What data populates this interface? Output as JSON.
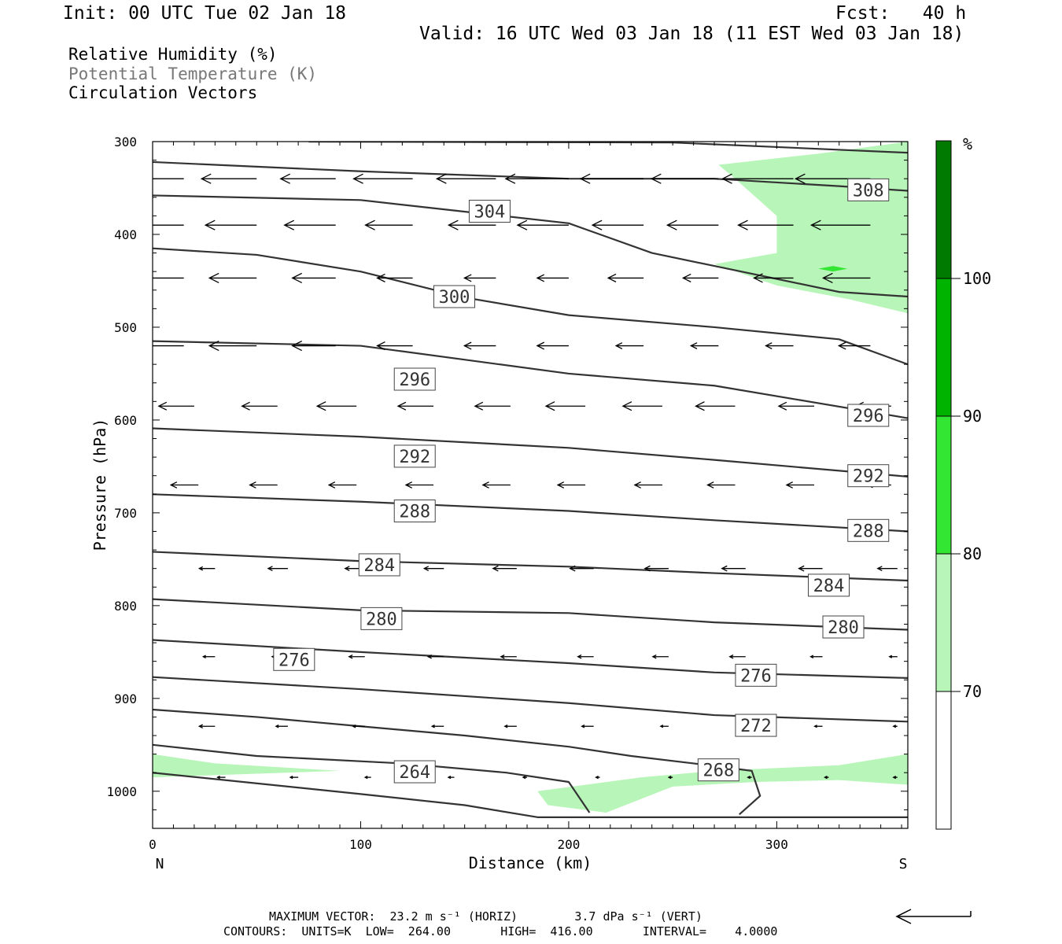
{
  "header": {
    "init": "Init: 00 UTC Tue 02 Jan 18",
    "fcst": "Fcst:   40 h",
    "valid": "Valid: 16 UTC Wed 03 Jan 18 (11 EST Wed 03 Jan 18)"
  },
  "legend_lines": {
    "rh": "Relative Humidity (%)",
    "theta": "Potential Temperature (K)",
    "vectors": "Circulation Vectors"
  },
  "footer": {
    "max_vector": "MAXIMUM VECTOR:  23.2 m s⁻¹ (HORIZ)        3.7 dPa s⁻¹ (VERT)",
    "contours": "CONTOURS:  UNITS=K  LOW=  264.00       HIGH=  416.00       INTERVAL=    4.0000"
  },
  "colors": {
    "rh_70": "#b8f5b8",
    "rh_80": "#33e633",
    "rh_90": "#00b300",
    "rh_100": "#007a00",
    "contour": "#333333"
  },
  "chart_data": {
    "type": "cross-section",
    "xlabel": "Distance (km)",
    "ylabel": "Pressure (hPa)",
    "xlim": [
      0,
      363
    ],
    "ylim": [
      300,
      1040
    ],
    "y_scale": "linear, pressure increasing downward",
    "x_ticks": [
      0,
      100,
      200,
      300
    ],
    "y_ticks": [
      300,
      400,
      500,
      600,
      700,
      800,
      900,
      1000
    ],
    "x_end_labels": {
      "left": "N",
      "right": "S"
    },
    "colorbar": {
      "unit": "%",
      "levels": [
        70,
        80,
        90,
        100
      ],
      "colors": [
        "#ffffff",
        "#b8f5b8",
        "#33e633",
        "#00b300",
        "#007a00"
      ]
    },
    "rh_shaded": [
      {
        "level": 70,
        "points": [
          [
            272,
            325
          ],
          [
            320,
            313
          ],
          [
            363,
            300
          ],
          [
            363,
            485
          ],
          [
            335,
            470
          ],
          [
            300,
            455
          ],
          [
            270,
            432
          ],
          [
            300,
            420
          ],
          [
            300,
            380
          ],
          [
            280,
            340
          ]
        ]
      },
      {
        "level": 70,
        "points": [
          [
            0,
            960
          ],
          [
            30,
            970
          ],
          [
            90,
            978
          ],
          [
            0,
            985
          ]
        ]
      },
      {
        "level": 70,
        "points": [
          [
            185,
            1000
          ],
          [
            235,
            985
          ],
          [
            270,
            978
          ],
          [
            330,
            972
          ],
          [
            363,
            960
          ],
          [
            363,
            993
          ],
          [
            330,
            988
          ],
          [
            290,
            990
          ],
          [
            250,
            995
          ],
          [
            218,
            1023
          ],
          [
            190,
            1015
          ]
        ]
      },
      {
        "level": 80,
        "points": [
          [
            320,
            437
          ],
          [
            327,
            434
          ],
          [
            334,
            437
          ],
          [
            327,
            440
          ]
        ]
      }
    ],
    "theta_contours": [
      {
        "value": 264,
        "points": [
          [
            0,
            950
          ],
          [
            50,
            962
          ],
          [
            120,
            970
          ],
          [
            170,
            980
          ],
          [
            200,
            990
          ],
          [
            210,
            1023
          ]
        ]
      },
      {
        "value": 268,
        "points": [
          [
            0,
            980
          ],
          [
            100,
            1003
          ],
          [
            150,
            1015
          ],
          [
            185,
            1028
          ],
          [
            363,
            1028
          ]
        ]
      },
      {
        "value": 268,
        "points": [
          [
            282,
            1025
          ],
          [
            292,
            1005
          ],
          [
            288,
            978
          ],
          [
            260,
            970
          ],
          [
            230,
            962
          ],
          [
            200,
            952
          ],
          [
            150,
            940
          ],
          [
            100,
            930
          ],
          [
            50,
            920
          ],
          [
            0,
            912
          ]
        ]
      },
      {
        "value": 272,
        "points": [
          [
            0,
            877
          ],
          [
            100,
            890
          ],
          [
            200,
            905
          ],
          [
            270,
            918
          ],
          [
            363,
            925
          ]
        ]
      },
      {
        "value": 276,
        "points": [
          [
            0,
            837
          ],
          [
            100,
            850
          ],
          [
            200,
            862
          ],
          [
            270,
            872
          ],
          [
            363,
            878
          ]
        ]
      },
      {
        "value": 280,
        "points": [
          [
            0,
            793
          ],
          [
            100,
            805
          ],
          [
            200,
            808
          ],
          [
            270,
            818
          ],
          [
            363,
            826
          ]
        ]
      },
      {
        "value": 284,
        "points": [
          [
            0,
            742
          ],
          [
            100,
            752
          ],
          [
            200,
            758
          ],
          [
            270,
            765
          ],
          [
            363,
            773
          ]
        ]
      },
      {
        "value": 288,
        "points": [
          [
            0,
            680
          ],
          [
            100,
            688
          ],
          [
            200,
            698
          ],
          [
            270,
            708
          ],
          [
            363,
            720
          ]
        ]
      },
      {
        "value": 292,
        "points": [
          [
            0,
            609
          ],
          [
            100,
            618
          ],
          [
            200,
            630
          ],
          [
            270,
            643
          ],
          [
            363,
            661
          ]
        ]
      },
      {
        "value": 296,
        "points": [
          [
            0,
            515
          ],
          [
            100,
            520
          ],
          [
            200,
            550
          ],
          [
            270,
            563
          ],
          [
            363,
            598
          ]
        ]
      },
      {
        "value": 300,
        "points": [
          [
            0,
            415
          ],
          [
            50,
            422
          ],
          [
            100,
            440
          ],
          [
            150,
            468
          ],
          [
            200,
            487
          ],
          [
            270,
            500
          ],
          [
            330,
            513
          ],
          [
            363,
            540
          ]
        ]
      },
      {
        "value": 304,
        "points": [
          [
            0,
            358
          ],
          [
            100,
            363
          ],
          [
            160,
            378
          ],
          [
            200,
            388
          ],
          [
            240,
            420
          ],
          [
            270,
            434
          ],
          [
            330,
            462
          ],
          [
            363,
            467
          ]
        ]
      },
      {
        "value": 308,
        "points": [
          [
            0,
            322
          ],
          [
            100,
            332
          ],
          [
            200,
            340
          ],
          [
            270,
            340
          ],
          [
            330,
            348
          ],
          [
            363,
            353
          ]
        ]
      },
      {
        "value": 312,
        "points": [
          [
            75,
            300
          ],
          [
            250,
            301
          ],
          [
            363,
            312
          ]
        ]
      }
    ],
    "contour_labels": [
      {
        "text": "264",
        "x": 126,
        "y": 979
      },
      {
        "text": "268",
        "x": 272,
        "y": 977
      },
      {
        "text": "272",
        "x": 290,
        "y": 929
      },
      {
        "text": "276",
        "x": 290,
        "y": 875
      },
      {
        "text": "276",
        "x": 68,
        "y": 858
      },
      {
        "text": "280",
        "x": 110,
        "y": 814
      },
      {
        "text": "280",
        "x": 332,
        "y": 823
      },
      {
        "text": "284",
        "x": 109,
        "y": 756
      },
      {
        "text": "284",
        "x": 325,
        "y": 778
      },
      {
        "text": "288",
        "x": 126,
        "y": 698
      },
      {
        "text": "288",
        "x": 344,
        "y": 719
      },
      {
        "text": "292",
        "x": 126,
        "y": 639
      },
      {
        "text": "292",
        "x": 344,
        "y": 660
      },
      {
        "text": "296",
        "x": 126,
        "y": 556
      },
      {
        "text": "296",
        "x": 344,
        "y": 595
      },
      {
        "text": "300",
        "x": 145,
        "y": 467
      },
      {
        "text": "304",
        "x": 162,
        "y": 375
      },
      {
        "text": "308",
        "x": 344,
        "y": 352
      }
    ],
    "vector_rows": [
      {
        "p": 340,
        "x": [
          15,
          50,
          88,
          125,
          165,
          200,
          236,
          272,
          308,
          345
        ],
        "u": [
          -28,
          -28,
          -28,
          -30,
          -30,
          -32,
          -32,
          -34,
          -36,
          -38
        ]
      },
      {
        "p": 390,
        "x": [
          15,
          50,
          88,
          125,
          165,
          200,
          236,
          272,
          308,
          345
        ],
        "u": [
          -26,
          -26,
          -26,
          -24,
          -24,
          -26,
          -26,
          -26,
          -28,
          -30
        ]
      },
      {
        "p": 447,
        "x": [
          15,
          50,
          88,
          125,
          165,
          200,
          236,
          272,
          308,
          345
        ],
        "u": [
          -26,
          -24,
          -22,
          -18,
          -16,
          -16,
          -18,
          -18,
          -20,
          -24
        ]
      },
      {
        "p": 520,
        "x": [
          15,
          50,
          88,
          125,
          165,
          200,
          236,
          272,
          308,
          345
        ],
        "u": [
          -24,
          -24,
          -22,
          -18,
          -16,
          -16,
          -14,
          -14,
          -14,
          -16
        ]
      },
      {
        "p": 585,
        "x": [
          20,
          60,
          98,
          135,
          172,
          208,
          245,
          280,
          318,
          355
        ],
        "u": [
          -18,
          -18,
          -20,
          -18,
          -18,
          -20,
          -20,
          -20,
          -18,
          -18
        ]
      },
      {
        "p": 670,
        "x": [
          22,
          60,
          98,
          135,
          172,
          208,
          245,
          280,
          318,
          355
        ],
        "u": [
          -14,
          -14,
          -14,
          -14,
          -14,
          -14,
          -14,
          -14,
          -14,
          -12
        ]
      },
      {
        "p": 760,
        "x": [
          30,
          65,
          102,
          140,
          175,
          212,
          248,
          285,
          322,
          358
        ],
        "u": [
          -8,
          -10,
          -10,
          -10,
          -12,
          -12,
          -12,
          -12,
          -12,
          -10
        ]
      },
      {
        "p": 855,
        "x": [
          30,
          65,
          102,
          140,
          175,
          212,
          248,
          285,
          322,
          358
        ],
        "u": [
          -6,
          -8,
          -8,
          -8,
          -8,
          -8,
          -8,
          -8,
          -6,
          -4
        ]
      },
      {
        "p": 930,
        "x": [
          30,
          65,
          102,
          140,
          175,
          212,
          248,
          285,
          322,
          358
        ],
        "u": [
          -8,
          -6,
          -6,
          -6,
          -6,
          -6,
          -4,
          -4,
          -4,
          -2
        ]
      },
      {
        "p": 985,
        "x": [
          35,
          70,
          105,
          145,
          180,
          215,
          250,
          288,
          325,
          358
        ],
        "u": [
          -4,
          -4,
          -3,
          -3,
          -2,
          -2,
          -2,
          -2,
          -2,
          -2
        ]
      }
    ],
    "reference_vector_label": "MAXIMUM VECTOR"
  }
}
